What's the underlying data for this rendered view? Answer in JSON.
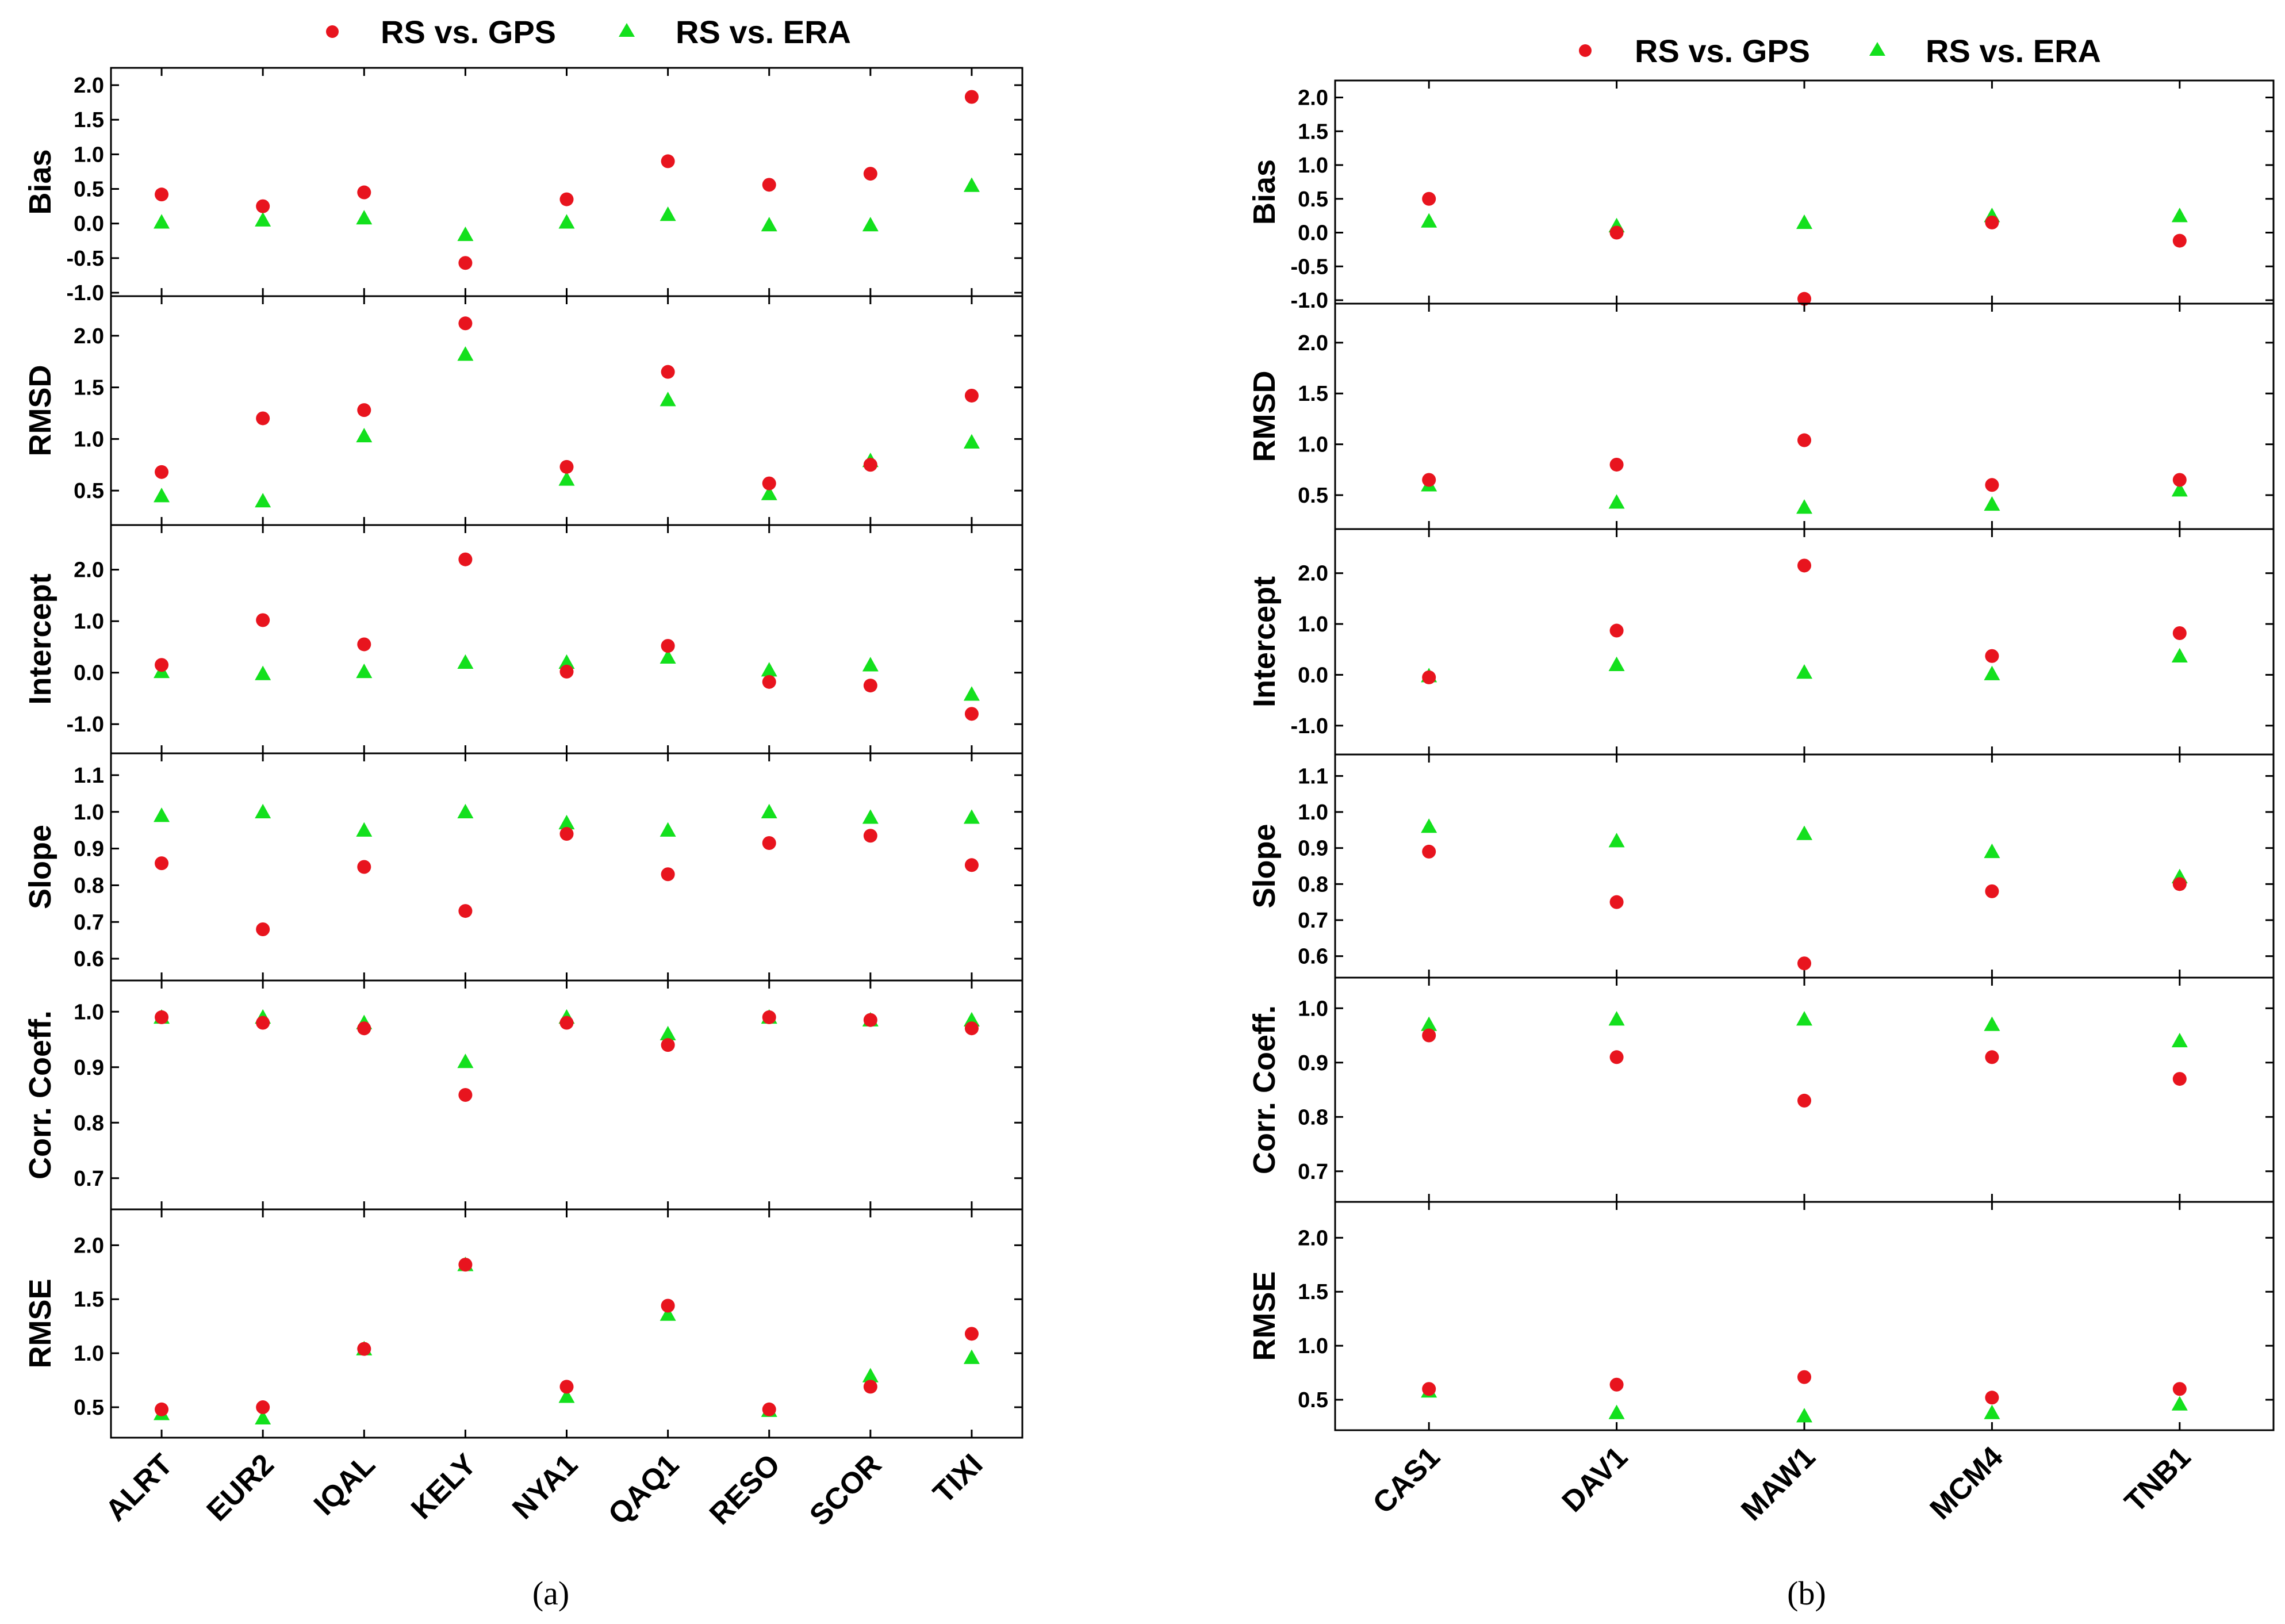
{
  "legend": {
    "gps": "RS vs. GPS",
    "era": "RS vs. ERA"
  },
  "colors": {
    "gps": "#e8141e",
    "era": "#13e01d"
  },
  "captions": {
    "a": "(a)",
    "b": "(b)"
  },
  "chart_data": [
    {
      "id": "a",
      "type": "scatter",
      "categories": [
        "ALRT",
        "EUR2",
        "IQAL",
        "KELY",
        "NYA1",
        "QAQ1",
        "RESO",
        "SCOR",
        "TIXI"
      ],
      "panels": [
        {
          "name": "bias",
          "ylabel": "Bias",
          "ylim": [
            -1.0,
            2.2
          ],
          "ticks": [
            -1.0,
            -0.5,
            0.0,
            0.5,
            1.0,
            1.5,
            2.0
          ],
          "tick_labels": [
            "-1.0",
            "-0.5",
            "0.0",
            "0.5",
            "1.0",
            "1.5",
            "2.0"
          ],
          "series": [
            {
              "name": "RS vs. GPS",
              "values": [
                0.42,
                0.25,
                0.45,
                -0.57,
                0.35,
                0.9,
                0.56,
                0.72,
                1.83
              ]
            },
            {
              "name": "RS vs. ERA",
              "values": [
                0.02,
                0.05,
                0.08,
                -0.16,
                0.02,
                0.13,
                -0.02,
                -0.02,
                0.55
              ]
            }
          ]
        },
        {
          "name": "rmsd",
          "ylabel": "RMSD",
          "ylim": [
            0.2,
            2.35
          ],
          "ticks": [
            0.5,
            1.0,
            1.5,
            2.0
          ],
          "tick_labels": [
            "0.5",
            "1.0",
            "1.5",
            "2.0"
          ],
          "series": [
            {
              "name": "RS vs. GPS",
              "values": [
                0.68,
                1.2,
                1.28,
                2.12,
                0.73,
                1.65,
                0.57,
                0.75,
                1.42
              ]
            },
            {
              "name": "RS vs. ERA",
              "values": [
                0.45,
                0.4,
                1.03,
                1.82,
                0.61,
                1.38,
                0.47,
                0.79,
                0.97
              ]
            }
          ]
        },
        {
          "name": "intercept",
          "ylabel": "Intercept",
          "ylim": [
            -1.5,
            2.8
          ],
          "ticks": [
            -1.0,
            0.0,
            1.0,
            2.0
          ],
          "tick_labels": [
            "-1.0",
            "0.0",
            "1.0",
            "2.0"
          ],
          "series": [
            {
              "name": "RS vs. GPS",
              "values": [
                0.15,
                1.02,
                0.55,
                2.2,
                0.02,
                0.52,
                -0.18,
                -0.25,
                -0.8
              ]
            },
            {
              "name": "RS vs. ERA",
              "values": [
                0.02,
                -0.02,
                0.02,
                0.2,
                0.2,
                0.3,
                0.05,
                0.15,
                -0.42
              ]
            }
          ]
        },
        {
          "name": "slope",
          "ylabel": "Slope",
          "ylim": [
            0.55,
            1.15
          ],
          "ticks": [
            0.6,
            0.7,
            0.8,
            0.9,
            1.0,
            1.1
          ],
          "tick_labels": [
            "0.6",
            "0.7",
            "0.8",
            "0.9",
            "1.0",
            "1.1"
          ],
          "series": [
            {
              "name": "RS vs. GPS",
              "values": [
                0.86,
                0.68,
                0.85,
                0.73,
                0.94,
                0.83,
                0.915,
                0.935,
                0.855
              ]
            },
            {
              "name": "RS vs. ERA",
              "values": [
                0.99,
                1.0,
                0.95,
                1.0,
                0.97,
                0.95,
                1.0,
                0.985,
                0.985
              ]
            }
          ]
        },
        {
          "name": "corr",
          "ylabel": "Corr. Coeff.",
          "ylim": [
            0.65,
            1.05
          ],
          "ticks": [
            0.7,
            0.8,
            0.9,
            1.0
          ],
          "tick_labels": [
            "0.7",
            "0.8",
            "0.9",
            "1.0"
          ],
          "series": [
            {
              "name": "RS vs. GPS",
              "values": [
                0.99,
                0.98,
                0.97,
                0.85,
                0.98,
                0.94,
                0.99,
                0.985,
                0.97
              ]
            },
            {
              "name": "RS vs. ERA",
              "values": [
                0.99,
                0.99,
                0.98,
                0.91,
                0.99,
                0.96,
                0.99,
                0.985,
                0.985
              ]
            }
          ]
        },
        {
          "name": "rmse",
          "ylabel": "RMSE",
          "ylim": [
            0.25,
            2.3
          ],
          "ticks": [
            0.5,
            1.0,
            1.5,
            2.0
          ],
          "tick_labels": [
            "0.5",
            "1.0",
            "1.5",
            "2.0"
          ],
          "series": [
            {
              "name": "RS vs. GPS",
              "values": [
                0.48,
                0.5,
                1.04,
                1.82,
                0.69,
                1.44,
                0.48,
                0.69,
                1.18
              ]
            },
            {
              "name": "RS vs. ERA",
              "values": [
                0.44,
                0.4,
                1.04,
                1.82,
                0.6,
                1.36,
                0.47,
                0.79,
                0.96
              ]
            }
          ]
        }
      ]
    },
    {
      "id": "b",
      "type": "scatter",
      "categories": [
        "CAS1",
        "DAV1",
        "MAW1",
        "MCM4",
        "TNB1"
      ],
      "panels": [
        {
          "name": "bias",
          "ylabel": "Bias",
          "ylim": [
            -1.0,
            2.2
          ],
          "ticks": [
            -1.0,
            -0.5,
            0.0,
            0.5,
            1.0,
            1.5,
            2.0
          ],
          "tick_labels": [
            "-1.0",
            "-0.5",
            "0.0",
            "0.5",
            "1.0",
            "1.5",
            "2.0"
          ],
          "series": [
            {
              "name": "RS vs. GPS",
              "values": [
                0.5,
                0.0,
                -0.98,
                0.15,
                -0.12
              ]
            },
            {
              "name": "RS vs. ERA",
              "values": [
                0.17,
                0.1,
                0.15,
                0.25,
                0.25
              ]
            }
          ]
        },
        {
          "name": "rmsd",
          "ylabel": "RMSD",
          "ylim": [
            0.2,
            2.35
          ],
          "ticks": [
            0.5,
            1.0,
            1.5,
            2.0
          ],
          "tick_labels": [
            "0.5",
            "1.0",
            "1.5",
            "2.0"
          ],
          "series": [
            {
              "name": "RS vs. GPS",
              "values": [
                0.65,
                0.8,
                1.04,
                0.6,
                0.65
              ]
            },
            {
              "name": "RS vs. ERA",
              "values": [
                0.6,
                0.43,
                0.38,
                0.41,
                0.55
              ]
            }
          ]
        },
        {
          "name": "intercept",
          "ylabel": "Intercept",
          "ylim": [
            -1.5,
            2.8
          ],
          "ticks": [
            -1.0,
            0.0,
            1.0,
            2.0
          ],
          "tick_labels": [
            "-1.0",
            "0.0",
            "1.0",
            "2.0"
          ],
          "series": [
            {
              "name": "RS vs. GPS",
              "values": [
                -0.05,
                0.87,
                2.15,
                0.37,
                0.82
              ]
            },
            {
              "name": "RS vs. ERA",
              "values": [
                -0.02,
                0.2,
                0.05,
                0.02,
                0.37
              ]
            }
          ]
        },
        {
          "name": "slope",
          "ylabel": "Slope",
          "ylim": [
            0.55,
            1.15
          ],
          "ticks": [
            0.6,
            0.7,
            0.8,
            0.9,
            1.0,
            1.1
          ],
          "tick_labels": [
            "0.6",
            "0.7",
            "0.8",
            "0.9",
            "1.0",
            "1.1"
          ],
          "series": [
            {
              "name": "RS vs. GPS",
              "values": [
                0.89,
                0.75,
                0.58,
                0.78,
                0.8
              ]
            },
            {
              "name": "RS vs. ERA",
              "values": [
                0.96,
                0.92,
                0.94,
                0.89,
                0.82
              ]
            }
          ]
        },
        {
          "name": "corr",
          "ylabel": "Corr. Coeff.",
          "ylim": [
            0.65,
            1.05
          ],
          "ticks": [
            0.7,
            0.8,
            0.9,
            1.0
          ],
          "tick_labels": [
            "0.7",
            "0.8",
            "0.9",
            "1.0"
          ],
          "series": [
            {
              "name": "RS vs. GPS",
              "values": [
                0.95,
                0.91,
                0.83,
                0.91,
                0.87
              ]
            },
            {
              "name": "RS vs. ERA",
              "values": [
                0.97,
                0.98,
                0.98,
                0.97,
                0.94
              ]
            }
          ]
        },
        {
          "name": "rmse",
          "ylabel": "RMSE",
          "ylim": [
            0.25,
            2.3
          ],
          "ticks": [
            0.5,
            1.0,
            1.5,
            2.0
          ],
          "tick_labels": [
            "0.5",
            "1.0",
            "1.5",
            "2.0"
          ],
          "series": [
            {
              "name": "RS vs. GPS",
              "values": [
                0.6,
                0.64,
                0.71,
                0.52,
                0.6
              ]
            },
            {
              "name": "RS vs. ERA",
              "values": [
                0.58,
                0.38,
                0.35,
                0.38,
                0.46
              ]
            }
          ]
        }
      ]
    }
  ]
}
